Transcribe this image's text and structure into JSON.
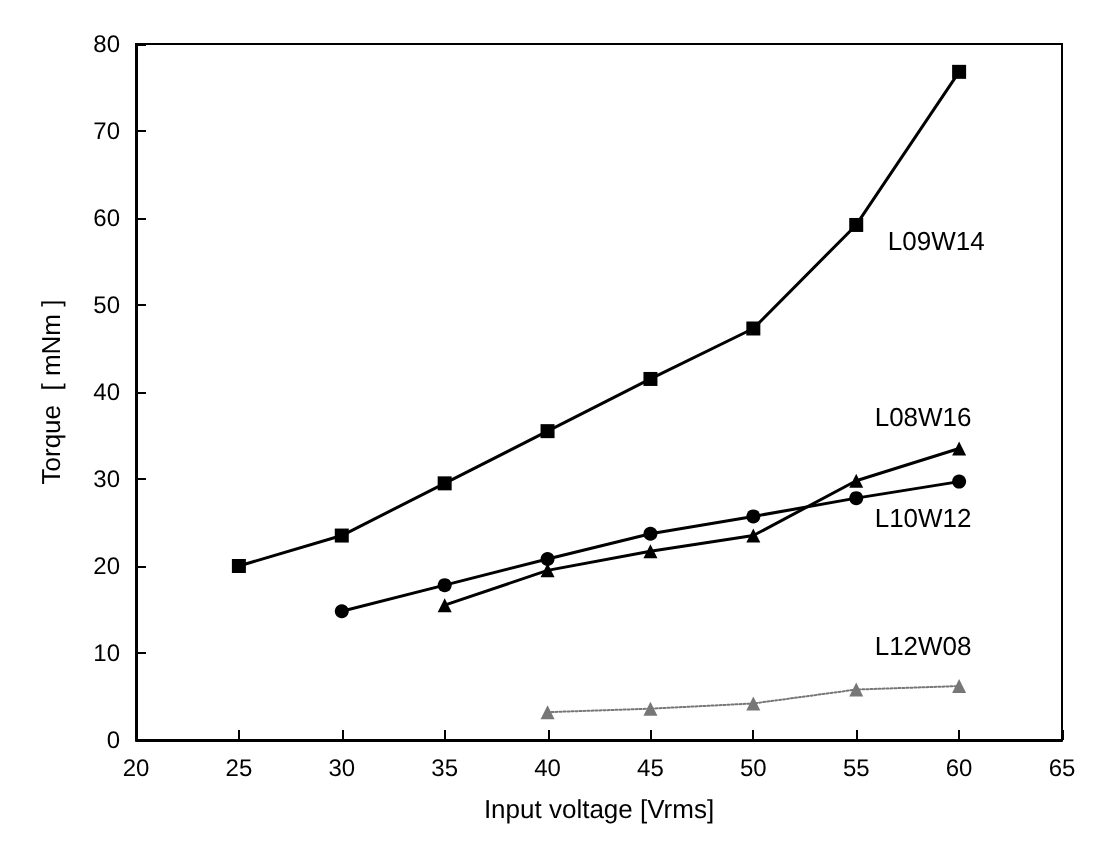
{
  "chart_data": {
    "type": "line",
    "xlabel": "Input voltage [Vrms]",
    "ylabel": "Torque  [ mNm ]",
    "xlim": [
      20,
      65
    ],
    "xticks": [
      20,
      25,
      30,
      35,
      40,
      45,
      50,
      55,
      60,
      65
    ],
    "ylim": [
      0,
      80
    ],
    "yticks": [
      0,
      10,
      20,
      30,
      40,
      50,
      60,
      70,
      80
    ],
    "grid": false,
    "legend": false,
    "series": [
      {
        "name": "L09W14",
        "color": "#000000",
        "marker": "square",
        "line_style": "solid",
        "x": [
          25,
          30,
          35,
          40,
          45,
          50,
          55,
          60
        ],
        "values": [
          20,
          23.5,
          29.5,
          35.5,
          41.5,
          47.3,
          59.2,
          76.8
        ]
      },
      {
        "name": "L08W16",
        "color": "#000000",
        "marker": "triangle",
        "line_style": "solid",
        "x": [
          35,
          40,
          45,
          50,
          55,
          60
        ],
        "values": [
          15.5,
          19.5,
          21.7,
          23.5,
          29.8,
          33.5
        ]
      },
      {
        "name": "L10W12",
        "color": "#000000",
        "marker": "circle",
        "line_style": "solid",
        "x": [
          30,
          35,
          40,
          45,
          50,
          55,
          60
        ],
        "values": [
          14.8,
          17.8,
          20.8,
          23.7,
          25.7,
          27.8,
          29.7
        ]
      },
      {
        "name": "L12W08",
        "color": "#777777",
        "marker": "triangle",
        "line_style": "dotted",
        "x": [
          40,
          45,
          50,
          55,
          60
        ],
        "values": [
          3.2,
          3.6,
          4.2,
          5.8,
          6.2
        ]
      }
    ]
  }
}
